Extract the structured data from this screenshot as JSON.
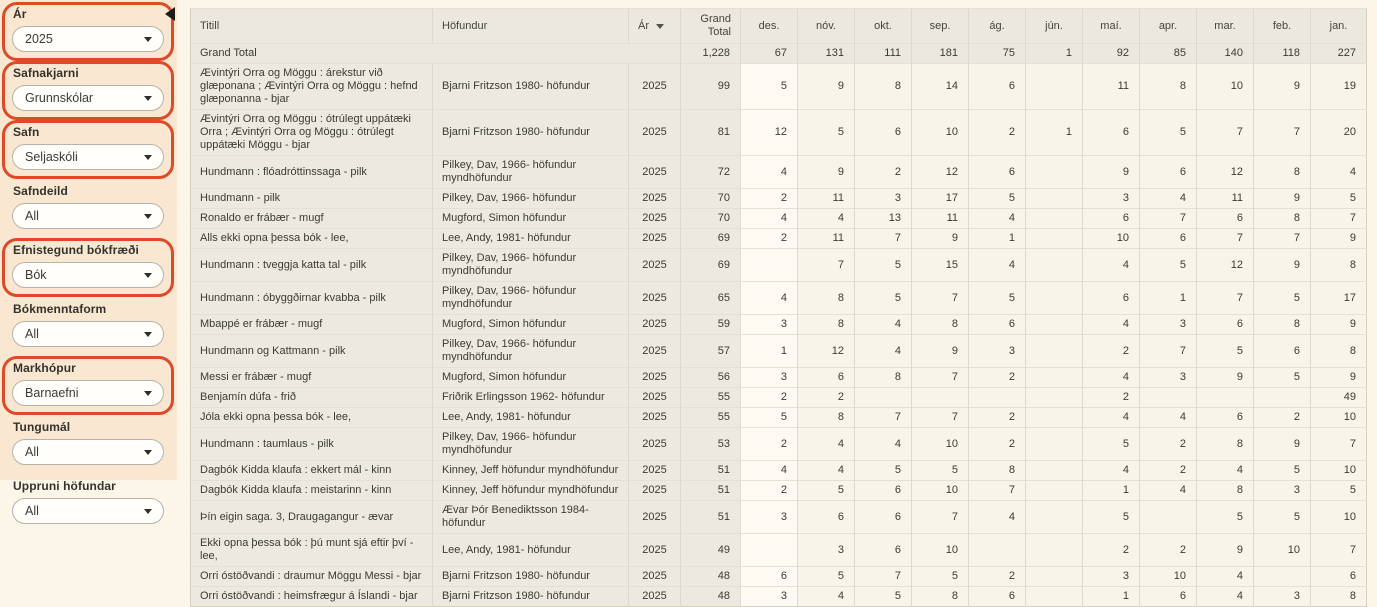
{
  "sidebar": {
    "collapse_icon": "left-triangle",
    "filters": [
      {
        "label": "Ár",
        "value": "2025",
        "highlighted": true
      },
      {
        "label": "Safnakjarni",
        "value": "Grunnskólar",
        "highlighted": true
      },
      {
        "label": "Safn",
        "value": "Seljaskóli",
        "highlighted": true
      },
      {
        "label": "Safndeild",
        "value": "All",
        "highlighted": false
      },
      {
        "label": "Efnistegund bókfræði",
        "value": "Bók",
        "highlighted": true
      },
      {
        "label": "Bókmenntaform",
        "value": "All",
        "highlighted": false
      },
      {
        "label": "Markhópur",
        "value": "Barnaefni",
        "highlighted": true
      },
      {
        "label": "Tungumál",
        "value": "All",
        "highlighted": false
      },
      {
        "label": "Uppruni höfundar",
        "value": "All",
        "highlighted": false
      }
    ]
  },
  "table": {
    "headers": {
      "title": "Titill",
      "author": "Höfundur",
      "year": "Ár",
      "grand_total": "Grand Total"
    },
    "sorted_column": "Ár",
    "month_columns": [
      "des.",
      "nóv.",
      "okt.",
      "sep.",
      "ág.",
      "jún.",
      "maí.",
      "apr.",
      "mar.",
      "feb.",
      "jan."
    ],
    "grand_total_row": {
      "title": "Grand Total",
      "total": "1,228",
      "months": [
        67,
        131,
        111,
        181,
        75,
        1,
        92,
        85,
        140,
        118,
        227
      ]
    },
    "rows": [
      {
        "title": "Ævintýri Orra og Möggu : árekstur við glæponana ; Ævintýri Orra og Möggu : hefnd glæponanna - bjar",
        "author": "Bjarni Fritzson 1980- höfundur",
        "year": "2025",
        "total": 99,
        "months": [
          5,
          9,
          8,
          14,
          6,
          "",
          11,
          8,
          10,
          9,
          19
        ]
      },
      {
        "title": "Ævintýri Orra og Möggu : ótrúlegt uppátæki Orra ; Ævintýri Orra og Möggu : ótrúlegt uppátæki Möggu - bjar",
        "author": "Bjarni Fritzson 1980- höfundur",
        "year": "2025",
        "total": 81,
        "months": [
          12,
          5,
          6,
          10,
          2,
          1,
          6,
          5,
          7,
          7,
          20
        ]
      },
      {
        "title": "Hundmann : flóadróttinssaga - pilk",
        "author": "Pilkey, Dav, 1966- höfundur myndhöfundur",
        "year": "2025",
        "total": 72,
        "months": [
          4,
          9,
          2,
          12,
          6,
          "",
          9,
          6,
          12,
          8,
          4
        ]
      },
      {
        "title": "Hundmann - pilk",
        "author": "Pilkey, Dav, 1966- höfundur",
        "year": "2025",
        "total": 70,
        "months": [
          2,
          11,
          3,
          17,
          5,
          "",
          3,
          4,
          11,
          9,
          5
        ]
      },
      {
        "title": "Ronaldo er frábær - mugf",
        "author": "Mugford, Simon höfundur",
        "year": "2025",
        "total": 70,
        "months": [
          4,
          4,
          13,
          11,
          4,
          "",
          6,
          7,
          6,
          8,
          7
        ]
      },
      {
        "title": "Alls ekki opna þessa bók - lee,",
        "author": "Lee, Andy, 1981- höfundur",
        "year": "2025",
        "total": 69,
        "months": [
          2,
          11,
          7,
          9,
          1,
          "",
          10,
          6,
          7,
          7,
          9
        ]
      },
      {
        "title": "Hundmann : tveggja katta tal - pilk",
        "author": "Pilkey, Dav, 1966- höfundur myndhöfundur",
        "year": "2025",
        "total": 69,
        "months": [
          "",
          7,
          5,
          15,
          4,
          "",
          4,
          5,
          12,
          9,
          8
        ]
      },
      {
        "title": "Hundmann : óbyggðirnar kvabba - pilk",
        "author": "Pilkey, Dav, 1966- höfundur myndhöfundur",
        "year": "2025",
        "total": 65,
        "months": [
          4,
          8,
          5,
          7,
          5,
          "",
          6,
          1,
          7,
          5,
          17
        ]
      },
      {
        "title": "Mbappé er frábær - mugf",
        "author": "Mugford, Simon höfundur",
        "year": "2025",
        "total": 59,
        "months": [
          3,
          8,
          4,
          8,
          6,
          "",
          4,
          3,
          6,
          8,
          9
        ]
      },
      {
        "title": "Hundmann og Kattmann - pilk",
        "author": "Pilkey, Dav, 1966- höfundur myndhöfundur",
        "year": "2025",
        "total": 57,
        "months": [
          1,
          12,
          4,
          9,
          3,
          "",
          2,
          7,
          5,
          6,
          8
        ]
      },
      {
        "title": "Messi er frábær - mugf",
        "author": "Mugford, Simon höfundur",
        "year": "2025",
        "total": 56,
        "months": [
          3,
          6,
          8,
          7,
          2,
          "",
          4,
          3,
          9,
          5,
          9
        ]
      },
      {
        "title": "Benjamín dúfa - frið",
        "author": "Friðrik Erlingsson 1962- höfundur",
        "year": "2025",
        "total": 55,
        "months": [
          2,
          2,
          "",
          "",
          "",
          "",
          2,
          "",
          "",
          "",
          49
        ]
      },
      {
        "title": "Jóla ekki opna þessa bók - lee,",
        "author": "Lee, Andy, 1981- höfundur",
        "year": "2025",
        "total": 55,
        "months": [
          5,
          8,
          7,
          7,
          2,
          "",
          4,
          4,
          6,
          2,
          10
        ]
      },
      {
        "title": "Hundmann : taumlaus - pilk",
        "author": "Pilkey, Dav, 1966- höfundur myndhöfundur",
        "year": "2025",
        "total": 53,
        "months": [
          2,
          4,
          4,
          10,
          2,
          "",
          5,
          2,
          8,
          9,
          7
        ]
      },
      {
        "title": "Dagbók Kidda klaufa : ekkert mál - kinn",
        "author": "Kinney, Jeff höfundur myndhöfundur",
        "year": "2025",
        "total": 51,
        "months": [
          4,
          4,
          5,
          5,
          8,
          "",
          4,
          2,
          4,
          5,
          10
        ]
      },
      {
        "title": "Dagbók Kidda klaufa : meistarinn - kinn",
        "author": "Kinney, Jeff höfundur myndhöfundur",
        "year": "2025",
        "total": 51,
        "months": [
          2,
          5,
          6,
          10,
          7,
          "",
          1,
          4,
          8,
          3,
          5
        ]
      },
      {
        "title": "Þín eigin saga. 3, Draugagangur - ævar",
        "author": "Ævar Þór Benediktsson 1984- höfundur",
        "year": "2025",
        "total": 51,
        "months": [
          3,
          6,
          6,
          7,
          4,
          "",
          5,
          "",
          5,
          5,
          10
        ]
      },
      {
        "title": "Ekki opna þessa bók : þú munt sjá eftir því - lee,",
        "author": "Lee, Andy, 1981- höfundur",
        "year": "2025",
        "total": 49,
        "months": [
          "",
          3,
          6,
          10,
          "",
          "",
          2,
          2,
          9,
          10,
          7
        ]
      },
      {
        "title": "Orri óstöðvandi : draumur Möggu Messi - bjar",
        "author": "Bjarni Fritzson 1980- höfundur",
        "year": "2025",
        "total": 48,
        "months": [
          6,
          5,
          7,
          5,
          2,
          "",
          3,
          10,
          4,
          "",
          6
        ]
      },
      {
        "title": "Orri óstöðvandi : heimsfrægur á Íslandi - bjar",
        "author": "Bjarni Fritzson 1980- höfundur",
        "year": "2025",
        "total": 48,
        "months": [
          3,
          4,
          5,
          8,
          6,
          "",
          1,
          6,
          4,
          3,
          8
        ]
      }
    ]
  },
  "colors": {
    "sidebar_bg": "#f9e7d1",
    "highlight_ring": "#dc4a28",
    "main_bg": "#fbf6e8",
    "header_bg": "#ebe8e0",
    "row_left_bg": "#ece9e1",
    "month_cell_bg": "#f8f4e9",
    "des_column_bg": "#fcfaf3"
  }
}
